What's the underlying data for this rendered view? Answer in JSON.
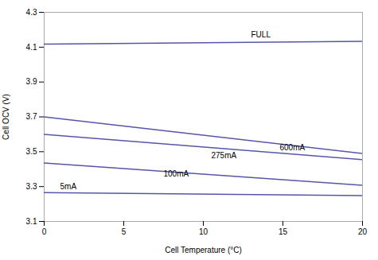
{
  "chart_data": {
    "type": "line",
    "xlabel": "Cell Temperature (°C)",
    "ylabel": "Cell OCV (V)",
    "xlim": [
      0,
      20
    ],
    "ylim": [
      3.1,
      4.3
    ],
    "xticks": [
      0,
      5,
      10,
      15,
      20
    ],
    "yticks": [
      3.1,
      3.3,
      3.5,
      3.7,
      3.9,
      4.1,
      4.3
    ],
    "color": "#5555aa",
    "grid": false,
    "series": [
      {
        "name": "FULL",
        "x": [
          0,
          20
        ],
        "values": [
          4.118,
          4.133
        ],
        "label_x": 13.0,
        "label_y": 4.158
      },
      {
        "name": "600mA",
        "x": [
          0,
          20
        ],
        "values": [
          3.7,
          3.49
        ],
        "label_x": 14.8,
        "label_y": 3.51
      },
      {
        "name": "275mA",
        "x": [
          0,
          20
        ],
        "values": [
          3.6,
          3.455
        ],
        "label_x": 10.5,
        "label_y": 3.465
      },
      {
        "name": "100mA",
        "x": [
          0,
          20
        ],
        "values": [
          3.435,
          3.308
        ],
        "label_x": 7.5,
        "label_y": 3.36
      },
      {
        "name": "5mA",
        "x": [
          0,
          20
        ],
        "values": [
          3.265,
          3.248
        ],
        "label_x": 1.0,
        "label_y": 3.287
      }
    ]
  }
}
